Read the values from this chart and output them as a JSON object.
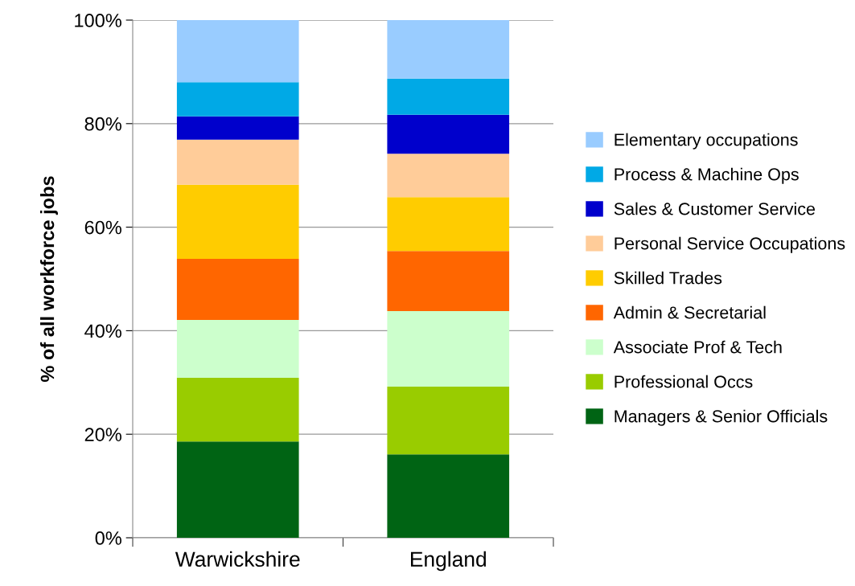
{
  "chart_data": {
    "type": "bar",
    "stacked": true,
    "ylabel": "% of all workforce jobs",
    "categories": [
      "Warwickshire",
      "England"
    ],
    "ylim": [
      0,
      100
    ],
    "yticks": [
      {
        "value": 0,
        "label": "0%"
      },
      {
        "value": 20,
        "label": "20%"
      },
      {
        "value": 40,
        "label": "40%"
      },
      {
        "value": 60,
        "label": "60%"
      },
      {
        "value": 80,
        "label": "80%"
      },
      {
        "value": 100,
        "label": "100%"
      }
    ],
    "grid": "y",
    "legend": "right",
    "series": [
      {
        "name": "Managers & Senior Officials",
        "color": "#006414",
        "values": [
          18.6,
          16.1
        ]
      },
      {
        "name": "Professional Occs",
        "color": "#99cc00",
        "values": [
          12.3,
          13.1
        ]
      },
      {
        "name": "Associate Prof & Tech",
        "color": "#ccffcc",
        "values": [
          11.2,
          14.6
        ]
      },
      {
        "name": "Admin & Secretarial",
        "color": "#ff6600",
        "values": [
          11.8,
          11.6
        ]
      },
      {
        "name": "Skilled Trades",
        "color": "#ffcc00",
        "values": [
          14.3,
          10.4
        ]
      },
      {
        "name": "Personal Service Occupations",
        "color": "#ffcc99",
        "values": [
          8.7,
          8.4
        ]
      },
      {
        "name": "Sales & Customer Service",
        "color": "#0000cc",
        "values": [
          4.5,
          7.5
        ]
      },
      {
        "name": "Process & Machine Ops",
        "color": "#00a9e6",
        "values": [
          6.6,
          7.0
        ]
      },
      {
        "name": "Elementary occupations",
        "color": "#99ccff",
        "values": [
          12.0,
          11.3
        ]
      }
    ]
  }
}
